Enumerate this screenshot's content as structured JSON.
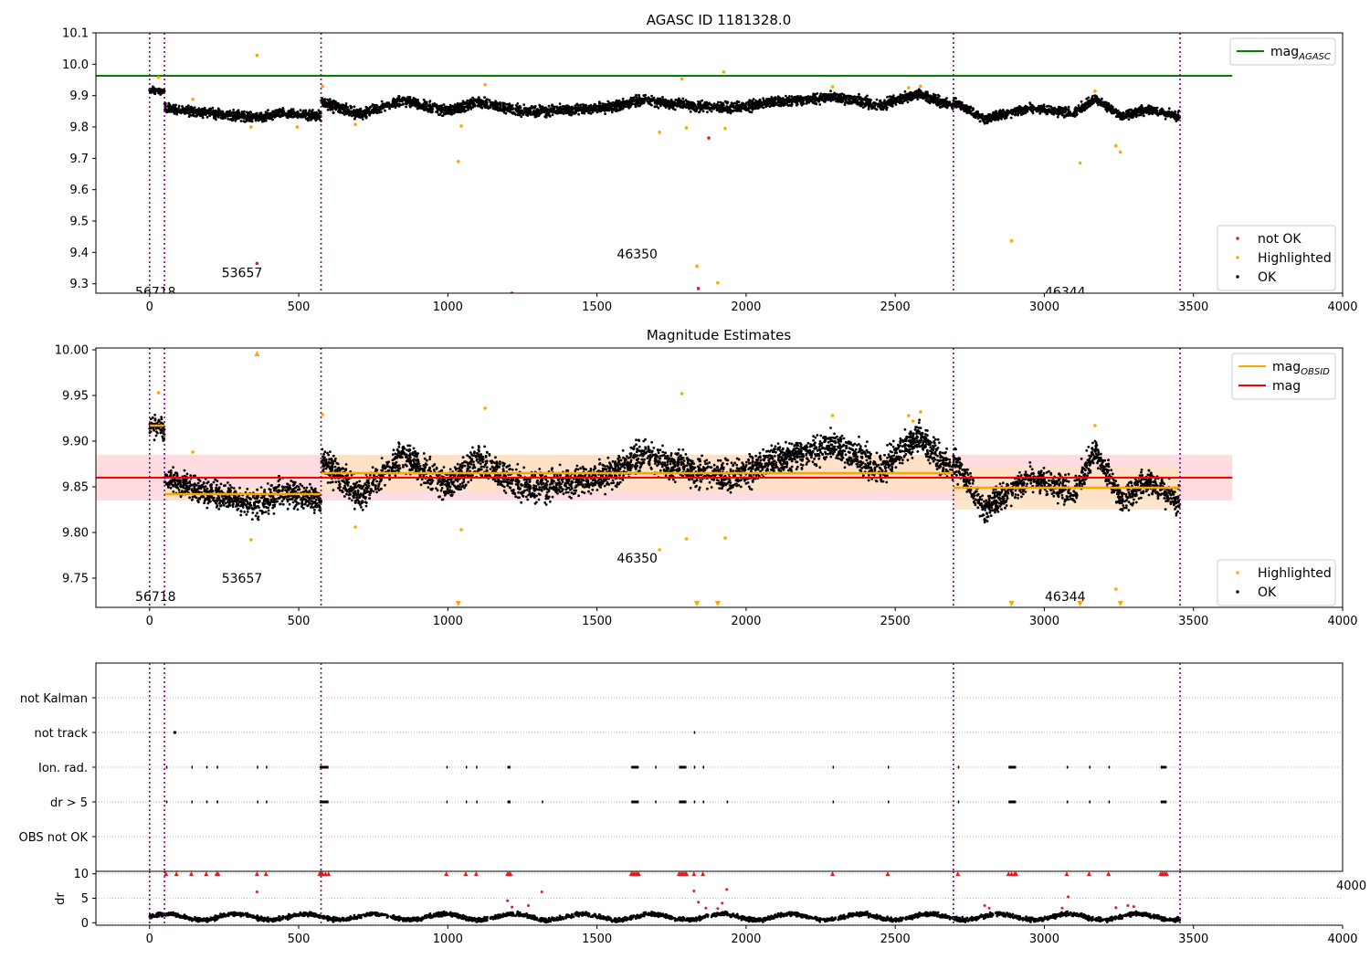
{
  "figure": {
    "title_top": "AGASC ID 1181328.0",
    "title_middle": "Magnitude Estimates"
  },
  "colors": {
    "ok": "#000000",
    "not_ok": "#e41a1c",
    "highlighted": "#ffa500",
    "mag_agasc": "#008000",
    "mag": "#ff0000",
    "mag_obsid": "#ffa500",
    "obs_boundary": "#800080",
    "mag_band": "#ffd8dc",
    "obs_band": "#ffe2c4"
  },
  "chart_data": [
    {
      "type": "scatter",
      "title": "AGASC ID 1181328.0",
      "xlim": [
        -180,
        4000
      ],
      "ylim": [
        9.27,
        10.1
      ],
      "xticks": [
        0,
        500,
        1000,
        1500,
        2000,
        2500,
        3000,
        3500,
        4000
      ],
      "yticks": [
        9.3,
        9.4,
        9.5,
        9.6,
        9.7,
        9.8,
        9.9,
        10.0,
        10.1
      ],
      "hlines": [
        {
          "name": "mag_AGASC",
          "y": 9.963,
          "x_range": [
            -180,
            3630
          ]
        }
      ],
      "obs_boundaries": [
        0,
        50,
        575,
        2695,
        3455
      ],
      "obs_labels": [
        {
          "text": "56718",
          "x": 20,
          "y": 9.275
        },
        {
          "text": "53657",
          "x": 310,
          "y": 9.335
        },
        {
          "text": "46350",
          "x": 1635,
          "y": 9.395
        },
        {
          "text": "46344",
          "x": 3070,
          "y": 9.275
        }
      ],
      "legends": [
        {
          "position": "upper-right",
          "entries": [
            {
              "label": "mag",
              "sub": "AGASC",
              "kind": "line",
              "color": "#008000"
            }
          ]
        },
        {
          "position": "lower-right",
          "entries": [
            {
              "label": "not OK",
              "kind": "dot",
              "color": "#e41a1c"
            },
            {
              "label": "Highlighted",
              "kind": "dot",
              "color": "#ffa500"
            },
            {
              "label": "OK",
              "kind": "dot",
              "color": "#000000"
            }
          ]
        }
      ],
      "series": [
        {
          "name": "not OK",
          "points": [
            [
              360,
              9.365
            ],
            [
              1215,
              9.27
            ],
            [
              1840,
              9.285
            ],
            [
              1875,
              9.765
            ]
          ]
        },
        {
          "name": "Highlighted",
          "points": [
            [
              30,
              9.958
            ],
            [
              145,
              9.888
            ],
            [
              340,
              9.8
            ],
            [
              360,
              10.028
            ],
            [
              495,
              9.8
            ],
            [
              580,
              9.93
            ],
            [
              690,
              9.808
            ],
            [
              1035,
              9.69
            ],
            [
              1045,
              9.803
            ],
            [
              1125,
              9.935
            ],
            [
              1710,
              9.783
            ],
            [
              1785,
              9.953
            ],
            [
              1800,
              9.797
            ],
            [
              1835,
              9.356
            ],
            [
              1905,
              9.303
            ],
            [
              1925,
              9.975
            ],
            [
              1930,
              9.795
            ],
            [
              2290,
              9.928
            ],
            [
              2545,
              9.925
            ],
            [
              2585,
              9.93
            ],
            [
              2890,
              9.437
            ],
            [
              3120,
              9.685
            ],
            [
              3170,
              9.914
            ],
            [
              3240,
              9.74
            ],
            [
              3255,
              9.72
            ]
          ]
        }
      ],
      "ok_trend": [
        {
          "x_range": [
            0,
            50
          ],
          "knots": [
            [
              0,
              9.918
            ],
            [
              50,
              9.912
            ]
          ],
          "noise": 0.018
        },
        {
          "x_range": [
            50,
            575
          ],
          "knots": [
            [
              50,
              9.86
            ],
            [
              150,
              9.848
            ],
            [
              250,
              9.84
            ],
            [
              350,
              9.83
            ],
            [
              450,
              9.845
            ],
            [
              575,
              9.835
            ]
          ],
          "noise": 0.025
        },
        {
          "x_range": [
            575,
            2695
          ],
          "knots": [
            [
              575,
              9.88
            ],
            [
              700,
              9.84
            ],
            [
              850,
              9.885
            ],
            [
              1000,
              9.85
            ],
            [
              1100,
              9.88
            ],
            [
              1250,
              9.85
            ],
            [
              1400,
              9.855
            ],
            [
              1550,
              9.865
            ],
            [
              1650,
              9.885
            ],
            [
              1800,
              9.87
            ],
            [
              1950,
              9.86
            ],
            [
              2100,
              9.88
            ],
            [
              2300,
              9.895
            ],
            [
              2450,
              9.87
            ],
            [
              2580,
              9.905
            ],
            [
              2695,
              9.865
            ]
          ],
          "noise": 0.028
        },
        {
          "x_range": [
            2695,
            3455
          ],
          "knots": [
            [
              2695,
              9.88
            ],
            [
              2800,
              9.825
            ],
            [
              2950,
              9.86
            ],
            [
              3100,
              9.845
            ],
            [
              3170,
              9.89
            ],
            [
              3260,
              9.835
            ],
            [
              3350,
              9.855
            ],
            [
              3455,
              9.835
            ]
          ],
          "noise": 0.025
        }
      ]
    },
    {
      "type": "scatter",
      "title": "Magnitude Estimates",
      "xlim": [
        -180,
        4000
      ],
      "ylim": [
        9.718,
        10.002
      ],
      "xticks": [
        0,
        500,
        1000,
        1500,
        2000,
        2500,
        3000,
        3500,
        4000
      ],
      "yticks": [
        9.75,
        9.8,
        9.85,
        9.9,
        9.95,
        10.0
      ],
      "mag": {
        "value": 9.86,
        "band": [
          9.835,
          9.885
        ],
        "x_range": [
          -180,
          3630
        ]
      },
      "mag_obsid": [
        {
          "x_range": [
            0,
            50
          ],
          "value": 9.917,
          "band": [
            9.91,
            9.925
          ]
        },
        {
          "x_range": [
            50,
            575
          ],
          "value": 9.842,
          "band": [
            9.835,
            9.85
          ]
        },
        {
          "x_range": [
            575,
            2695
          ],
          "value": 9.865,
          "band": [
            9.845,
            9.885
          ]
        },
        {
          "x_range": [
            2695,
            3455
          ],
          "value": 9.849,
          "band": [
            9.825,
            9.872
          ]
        }
      ],
      "obs_boundaries": [
        0,
        50,
        575,
        2695,
        3455
      ],
      "obs_labels": [
        {
          "text": "56718",
          "x": 20,
          "y": 9.73
        },
        {
          "text": "53657",
          "x": 310,
          "y": 9.75
        },
        {
          "text": "46350",
          "x": 1635,
          "y": 9.772
        },
        {
          "text": "46344",
          "x": 3070,
          "y": 9.73
        }
      ],
      "legends": [
        {
          "position": "upper-right",
          "entries": [
            {
              "label": "mag",
              "sub": "OBSID",
              "kind": "line",
              "color": "#ffa500"
            },
            {
              "label": "mag",
              "kind": "line",
              "color": "#ff0000"
            }
          ]
        },
        {
          "position": "lower-right",
          "entries": [
            {
              "label": "Highlighted",
              "kind": "dot",
              "color": "#ffa500"
            },
            {
              "label": "OK",
              "kind": "dot",
              "color": "#000000"
            }
          ]
        }
      ],
      "series": [
        {
          "name": "Highlighted",
          "points": [
            [
              30,
              9.953
            ],
            [
              145,
              9.888
            ],
            [
              340,
              9.792
            ],
            [
              580,
              9.929
            ],
            [
              690,
              9.806
            ],
            [
              1045,
              9.803
            ],
            [
              1125,
              9.936
            ],
            [
              1710,
              9.781
            ],
            [
              1785,
              9.952
            ],
            [
              1800,
              9.793
            ],
            [
              1930,
              9.794
            ],
            [
              2290,
              9.928
            ],
            [
              2545,
              9.928
            ],
            [
              2560,
              9.922
            ],
            [
              2585,
              9.932
            ],
            [
              3170,
              9.917
            ],
            [
              3240,
              9.738
            ]
          ]
        },
        {
          "name": "Highlighted (off-scale)",
          "marker": "triangle-up",
          "points": [
            [
              360,
              9.999
            ]
          ]
        },
        {
          "name": "Highlighted (off-scale)",
          "marker": "triangle-down",
          "points": [
            [
              1035,
              9.72
            ],
            [
              1835,
              9.72
            ],
            [
              1905,
              9.72
            ],
            [
              2890,
              9.72
            ],
            [
              3120,
              9.72
            ],
            [
              3255,
              9.72
            ]
          ]
        }
      ]
    },
    {
      "type": "scatter",
      "title": "",
      "xlim": [
        -180,
        4000
      ],
      "categories": [
        "not Kalman",
        "not track",
        "Ion. rad.",
        "dr > 5",
        "OBS not OK"
      ],
      "events": {
        "not track": [
          [
            80,
            90
          ],
          [
            1825,
            1828
          ]
        ],
        "Ion. rad.": [
          [
            55,
            58
          ],
          [
            140,
            143
          ],
          [
            190,
            193
          ],
          [
            225,
            230
          ],
          [
            360,
            363
          ],
          [
            390,
            393
          ],
          [
            570,
            600
          ],
          [
            995,
            998
          ],
          [
            1060,
            1063
          ],
          [
            1095,
            1098
          ],
          [
            1200,
            1210
          ],
          [
            1615,
            1640
          ],
          [
            1695,
            1698
          ],
          [
            1775,
            1800
          ],
          [
            1825,
            1828
          ],
          [
            1855,
            1858
          ],
          [
            2290,
            2293
          ],
          [
            2475,
            2478
          ],
          [
            2710,
            2713
          ],
          [
            2880,
            2905
          ],
          [
            3075,
            3078
          ],
          [
            3150,
            3153
          ],
          [
            3215,
            3218
          ],
          [
            3390,
            3410
          ]
        ],
        "dr > 5": [
          [
            55,
            58
          ],
          [
            140,
            143
          ],
          [
            190,
            193
          ],
          [
            225,
            230
          ],
          [
            360,
            363
          ],
          [
            390,
            393
          ],
          [
            570,
            600
          ],
          [
            995,
            998
          ],
          [
            1060,
            1063
          ],
          [
            1095,
            1098
          ],
          [
            1200,
            1210
          ],
          [
            1315,
            1318
          ],
          [
            1615,
            1640
          ],
          [
            1695,
            1698
          ],
          [
            1775,
            1800
          ],
          [
            1825,
            1828
          ],
          [
            1855,
            1858
          ],
          [
            1935,
            1938
          ],
          [
            2290,
            2293
          ],
          [
            2475,
            2478
          ],
          [
            2710,
            2713
          ],
          [
            2880,
            2905
          ],
          [
            3075,
            3078
          ],
          [
            3150,
            3153
          ],
          [
            3215,
            3218
          ],
          [
            3390,
            3410
          ]
        ]
      },
      "obs_boundaries": [
        0,
        50,
        575,
        2695,
        3455
      ]
    },
    {
      "type": "scatter",
      "title": "",
      "xlim": [
        -180,
        4000
      ],
      "ylim": [
        -0.5,
        10.5
      ],
      "xticks": [
        0,
        500,
        1000,
        1500,
        2000,
        2500,
        3000,
        3500,
        4000
      ],
      "yticks": [
        0,
        5,
        10
      ],
      "ylabel": "dr",
      "clip_value": 10,
      "obs_boundaries": [
        0,
        50,
        575,
        2695,
        3455
      ],
      "high_dr_x": [
        55,
        90,
        140,
        190,
        225,
        230,
        360,
        390,
        570,
        575,
        580,
        590,
        600,
        995,
        1060,
        1095,
        1200,
        1205,
        1210,
        1615,
        1620,
        1625,
        1630,
        1635,
        1640,
        1775,
        1780,
        1785,
        1790,
        1795,
        1800,
        1825,
        1855,
        2290,
        2475,
        2710,
        2880,
        2890,
        2900,
        2905,
        3075,
        3150,
        3215,
        3390,
        3395,
        3400,
        3405,
        3410
      ],
      "scattered_red": [
        [
          360,
          6.3
        ],
        [
          1200,
          4.5
        ],
        [
          1215,
          3.2
        ],
        [
          1270,
          3.5
        ],
        [
          1315,
          6.3
        ],
        [
          1825,
          6.5
        ],
        [
          1840,
          4.2
        ],
        [
          1865,
          3.0
        ],
        [
          1905,
          2.9
        ],
        [
          1920,
          4.0
        ],
        [
          1935,
          6.8
        ],
        [
          2800,
          3.5
        ],
        [
          2815,
          3.0
        ],
        [
          3080,
          5.3
        ],
        [
          3060,
          3.0
        ],
        [
          3240,
          3.1
        ],
        [
          3280,
          3.5
        ],
        [
          3300,
          3.3
        ]
      ],
      "low_dr_level": 1.2,
      "overflow_tick": "4000"
    }
  ]
}
